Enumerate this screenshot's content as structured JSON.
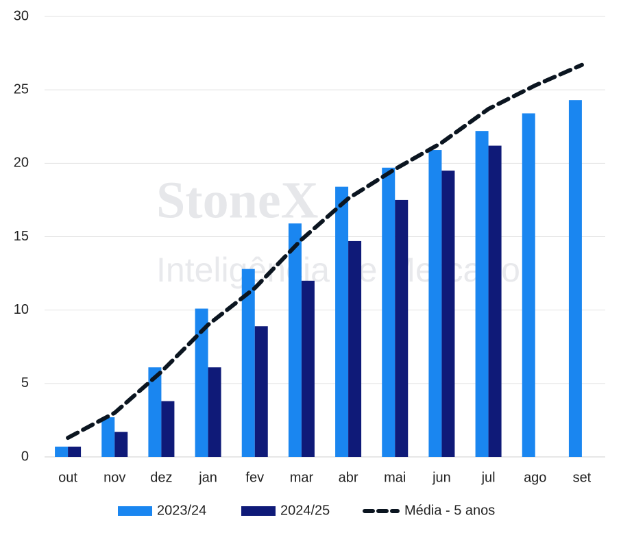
{
  "chart_data": {
    "type": "bar",
    "watermark": [
      "StoneX",
      "Inteligência de Mercado"
    ],
    "categories": [
      "out",
      "nov",
      "dez",
      "jan",
      "fev",
      "mar",
      "abr",
      "mai",
      "jun",
      "jul",
      "ago",
      "set"
    ],
    "series": [
      {
        "name": "2023/24",
        "type": "bar",
        "color": "#1a86f0",
        "values": [
          0.7,
          2.7,
          6.1,
          10.1,
          12.8,
          15.9,
          18.4,
          19.7,
          20.9,
          22.2,
          23.4,
          24.3
        ]
      },
      {
        "name": "2024/25",
        "type": "bar",
        "color": "#0f1a78",
        "values": [
          0.7,
          1.7,
          3.8,
          6.1,
          8.9,
          12.0,
          14.7,
          17.5,
          19.5,
          21.2,
          null,
          null
        ]
      },
      {
        "name": "Média - 5 anos",
        "type": "line",
        "dashed": true,
        "color": "#0b1520",
        "values": [
          1.3,
          3.0,
          5.8,
          9.0,
          11.5,
          14.8,
          17.6,
          19.6,
          21.4,
          23.7,
          25.3,
          26.7
        ]
      }
    ],
    "ylim": [
      0,
      30
    ],
    "yticks": [
      0,
      5,
      10,
      15,
      20,
      25,
      30
    ],
    "grid": true,
    "legend": "bottom"
  }
}
